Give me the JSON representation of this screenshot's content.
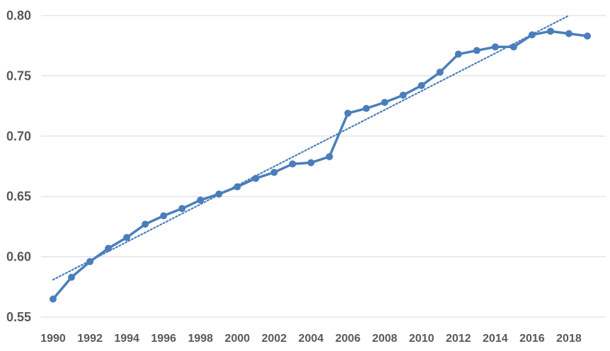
{
  "chart_data": {
    "type": "line",
    "title": "",
    "xlabel": "",
    "ylabel": "",
    "xlim": [
      1990,
      2019
    ],
    "ylim": [
      0.55,
      0.8
    ],
    "y_ticks": [
      0.55,
      0.6,
      0.65,
      0.7,
      0.75,
      0.8
    ],
    "y_tick_labels": [
      "0.55",
      "0.60",
      "0.65",
      "0.70",
      "0.75",
      "0.80"
    ],
    "x_ticks": [
      1990,
      1992,
      1994,
      1996,
      1998,
      2000,
      2002,
      2004,
      2006,
      2008,
      2010,
      2012,
      2014,
      2016,
      2018
    ],
    "x_tick_labels": [
      "1990",
      "1992",
      "1994",
      "1996",
      "1998",
      "2000",
      "2002",
      "2004",
      "2006",
      "2008",
      "2010",
      "2012",
      "2014",
      "2016",
      "2018"
    ],
    "grid": "horizontal",
    "legend": "none",
    "series": [
      {
        "color": "#4A7EBB",
        "marker": "circle",
        "x": [
          1990,
          1991,
          1992,
          1993,
          1994,
          1995,
          1996,
          1997,
          1998,
          1999,
          2000,
          2001,
          2002,
          2003,
          2004,
          2005,
          2006,
          2007,
          2008,
          2009,
          2010,
          2011,
          2012,
          2013,
          2014,
          2015,
          2016,
          2017,
          2018,
          2019
        ],
        "values": [
          0.565,
          0.583,
          0.596,
          0.607,
          0.616,
          0.627,
          0.634,
          0.64,
          0.647,
          0.652,
          0.658,
          0.665,
          0.67,
          0.677,
          0.678,
          0.683,
          0.719,
          0.723,
          0.728,
          0.734,
          0.742,
          0.753,
          0.768,
          0.771,
          0.774,
          0.774,
          0.784,
          0.787,
          0.785,
          0.783
        ]
      }
    ],
    "trendline": {
      "type": "linear",
      "style": "dotted",
      "color": "#4A7EBB",
      "x": [
        1990,
        2018
      ],
      "values": [
        0.581,
        0.8
      ]
    }
  }
}
